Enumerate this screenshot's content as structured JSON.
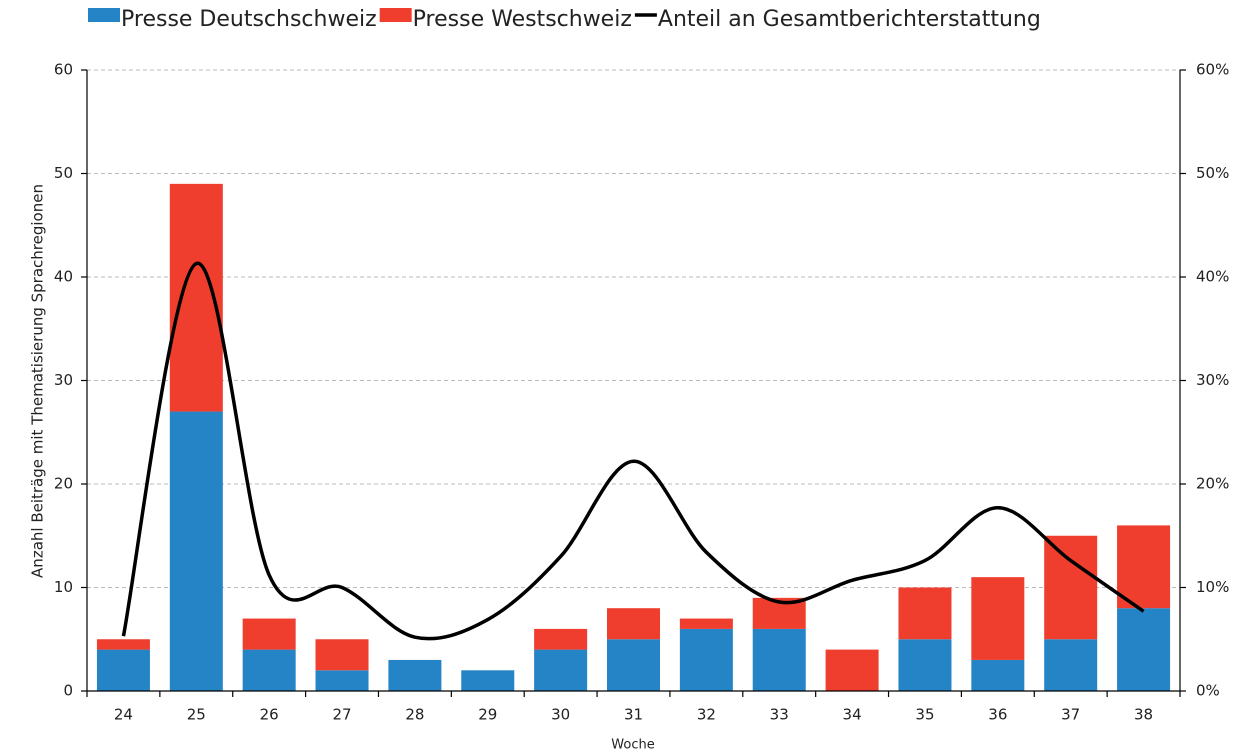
{
  "chart_data": {
    "type": "bar",
    "categories": [
      "24",
      "25",
      "26",
      "27",
      "28",
      "29",
      "30",
      "31",
      "32",
      "33",
      "34",
      "35",
      "36",
      "37",
      "38"
    ],
    "series": [
      {
        "name": "Presse Deutschschweiz",
        "color": "#2484c6",
        "values": [
          4,
          27,
          4,
          2,
          3,
          2,
          4,
          5,
          6,
          6,
          0,
          5,
          3,
          5,
          8
        ]
      },
      {
        "name": "Presse Westschweiz",
        "color": "#ef3e2e",
        "values": [
          1,
          22,
          3,
          3,
          0,
          0,
          2,
          3,
          1,
          3,
          4,
          5,
          8,
          10,
          8
        ]
      },
      {
        "name": "Anteil an Gesamtberichterstattung",
        "type": "line",
        "axis": "y2",
        "color": "#000000",
        "values": [
          5.3,
          41.3,
          11.2,
          10,
          5.2,
          6.9,
          13,
          22.2,
          13.4,
          8.6,
          10.7,
          12.6,
          17.7,
          12.6,
          7.7
        ]
      }
    ],
    "stacked": true,
    "x_label": "Woche",
    "y_label": "Anzahl Beiträge mit Thematisierung Sprachregionen",
    "ylim": [
      0,
      60
    ],
    "yticks": [
      0,
      10,
      20,
      30,
      40,
      50,
      60
    ],
    "y2lim": [
      0,
      60
    ],
    "y2ticks": [
      {
        "value": 0,
        "label": "0%"
      },
      {
        "value": 10,
        "label": "10%"
      },
      {
        "value": 20,
        "label": "20%"
      },
      {
        "value": 30,
        "label": "30%"
      },
      {
        "value": 40,
        "label": "40%"
      },
      {
        "value": 50,
        "label": "50%"
      },
      {
        "value": 60,
        "label": "60%"
      }
    ],
    "grid": true,
    "legend": "top"
  }
}
